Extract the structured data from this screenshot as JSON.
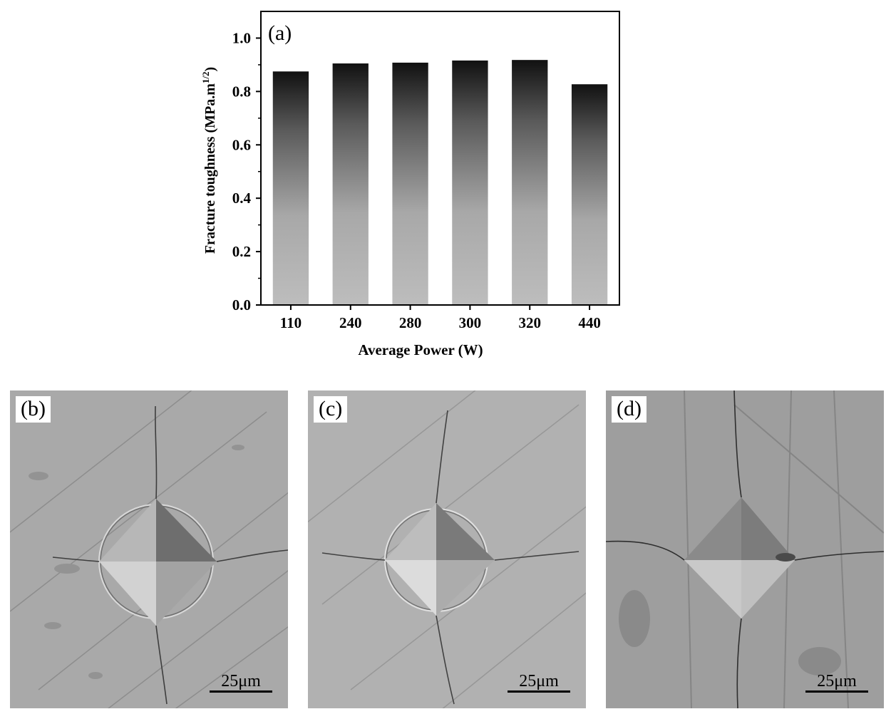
{
  "chart_data": {
    "type": "bar",
    "panel_label": "(a)",
    "categories": [
      "110",
      "240",
      "280",
      "300",
      "320",
      "440"
    ],
    "values": [
      0.875,
      0.905,
      0.908,
      0.916,
      0.918,
      0.827
    ],
    "xlabel": "Average Power (W)",
    "ylabel_main": "Fracture toughness (MPa.m",
    "ylabel_sup": "1/2",
    "ylabel_end": ")",
    "ylim": [
      0.0,
      1.1
    ],
    "yticks": [
      "0.0",
      "0.2",
      "0.4",
      "0.6",
      "0.8",
      "1.0"
    ],
    "grid": false,
    "bar_gradient": {
      "top": "#111111",
      "bottom": "#bdbdbd"
    }
  },
  "micrographs": [
    {
      "label": "(b)",
      "scale": "25μm"
    },
    {
      "label": "(c)",
      "scale": "25μm"
    },
    {
      "label": "(d)",
      "scale": "25μm"
    }
  ]
}
